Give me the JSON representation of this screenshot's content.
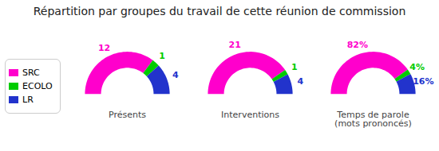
{
  "title": "Répartition par groupes du travail de cette réunion de commission",
  "chart_data": [
    {
      "type": "pie",
      "title": "Présents",
      "categories": [
        "SRC",
        "ECOLO",
        "LR"
      ],
      "values": [
        12,
        1,
        4
      ],
      "colors": [
        "#FF00CC",
        "#00CC00",
        "#2233CC"
      ],
      "data_labels": true,
      "legend": "left"
    },
    {
      "type": "pie",
      "title": "Interventions",
      "categories": [
        "SRC",
        "ECOLO",
        "LR"
      ],
      "values": [
        21,
        1,
        4
      ],
      "colors": [
        "#FF00CC",
        "#00CC00",
        "#2233CC"
      ],
      "data_labels": true
    },
    {
      "type": "pie",
      "title": "Temps de parole\n(mots prononcés)",
      "categories": [
        "SRC",
        "ECOLO",
        "LR"
      ],
      "values": [
        82,
        4,
        16
      ],
      "value_labels": [
        "82%",
        "4%",
        "16%"
      ],
      "colors": [
        "#FF00CC",
        "#00CC00",
        "#2233CC"
      ],
      "data_labels": true
    }
  ]
}
